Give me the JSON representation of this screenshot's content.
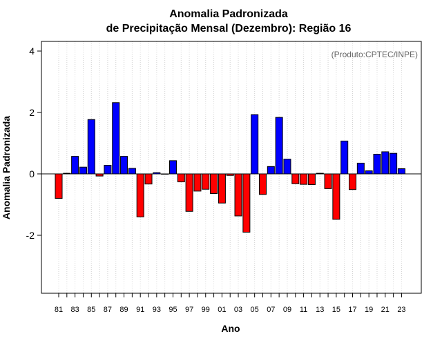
{
  "chart_data": {
    "type": "bar",
    "title": "Anomalia Padronizada",
    "subtitle": "de Precipitação Mensal (Dezembro): Região 16",
    "xlabel": "Ano",
    "ylabel": "Anomalia Padronizada",
    "credit": "(Produto:CPTEC/INPE)",
    "ylim": [
      -4,
      4.3
    ],
    "yticks": [
      -2,
      0,
      2,
      4
    ],
    "grid": "vertical dotted",
    "categories": [
      "81",
      "82",
      "83",
      "84",
      "85",
      "86",
      "87",
      "88",
      "89",
      "90",
      "91",
      "92",
      "93",
      "94",
      "95",
      "96",
      "97",
      "98",
      "99",
      "00",
      "01",
      "02",
      "03",
      "04",
      "05",
      "06",
      "07",
      "08",
      "09",
      "10",
      "11",
      "12",
      "13",
      "14",
      "15",
      "16",
      "17",
      "18",
      "19",
      "20",
      "21",
      "22",
      "23"
    ],
    "xtick_labels": [
      "81",
      "83",
      "85",
      "87",
      "89",
      "91",
      "93",
      "95",
      "97",
      "99",
      "01",
      "03",
      "05",
      "07",
      "09",
      "11",
      "13",
      "15",
      "17",
      "19",
      "21",
      "23"
    ],
    "values": [
      -0.8,
      0.02,
      0.57,
      0.22,
      1.77,
      -0.07,
      0.28,
      2.32,
      0.57,
      0.18,
      -1.4,
      -0.33,
      0.04,
      0.0,
      0.43,
      -0.26,
      -1.22,
      -0.56,
      -0.5,
      -0.64,
      -0.95,
      -0.05,
      -1.37,
      -1.9,
      1.93,
      -0.67,
      0.24,
      1.84,
      0.48,
      -0.32,
      -0.34,
      -0.35,
      0.02,
      -0.48,
      -1.48,
      1.07,
      -0.51,
      0.35,
      0.1,
      0.64,
      0.72,
      0.67,
      0.17
    ],
    "colors": {
      "positive": "#0000ff",
      "negative": "#ff0000",
      "outline": "#000000",
      "grid": "#d3d3d3"
    }
  }
}
